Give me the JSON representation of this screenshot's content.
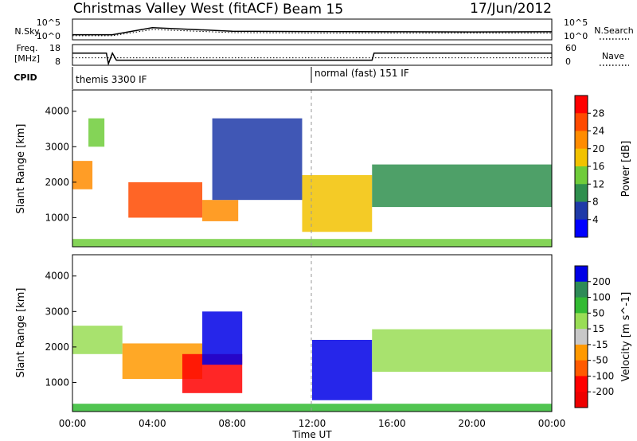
{
  "header": {
    "site": "Christmas Valley West (fitACF)",
    "beam": "Beam 15",
    "date": "17/Jun/2012"
  },
  "nsky_panel": {
    "left_label": "N.Sky",
    "left_ticks": [
      "10^5",
      "10^0"
    ],
    "right_label": "N.Search",
    "right_ticks": [
      "10^5",
      "10^0"
    ]
  },
  "freq_panel": {
    "left_label_1": "Freq.",
    "left_label_2": "[MHz]",
    "left_ticks": [
      "18",
      "8"
    ],
    "right_label": "Nave",
    "right_ticks": [
      "60",
      "0"
    ]
  },
  "cpid": {
    "label": "CPID",
    "modes": [
      {
        "name": "themis 3300 IF",
        "start_hour": 0
      },
      {
        "name": "normal (fast) 151 IF",
        "start_hour": 12
      }
    ]
  },
  "xaxis": {
    "title": "Time UT",
    "ticks": [
      "00:00",
      "04:00",
      "08:00",
      "12:00",
      "16:00",
      "20:00",
      "00:00"
    ]
  },
  "yaxis": {
    "title": "Slant Range [km]",
    "ticks": [
      "4000",
      "3000",
      "2000",
      "1000"
    ]
  },
  "power_scale": {
    "title": "Power [dB]",
    "labels": [
      "28",
      "24",
      "20",
      "16",
      "12",
      "8",
      "4"
    ],
    "colors": [
      "#ff0000",
      "#ff4a00",
      "#ff8c00",
      "#f2c200",
      "#6fcc3a",
      "#2f8f4e",
      "#1f3aa8",
      "#0000ff"
    ]
  },
  "velocity_scale": {
    "title": "Velocity [m s^-1]",
    "labels": [
      "200",
      "100",
      "50",
      "15",
      "-15",
      "-50",
      "-100",
      "-200"
    ],
    "colors": [
      "#0000e6",
      "#2e8b57",
      "#33bb33",
      "#99dd55",
      "#c8c8c8",
      "#ff9900",
      "#ff5a00",
      "#ff0000",
      "#ee0000"
    ]
  },
  "chart_data": [
    {
      "type": "line",
      "title": "N.Sky / N.Search",
      "x": [
        0,
        2,
        4,
        8,
        12,
        16,
        20,
        24
      ],
      "series": [
        {
          "name": "N.Sky",
          "values": [
            10,
            10,
            1000,
            100,
            80,
            70,
            60,
            70
          ]
        },
        {
          "name": "N.Search",
          "values": [
            5,
            5,
            300,
            40,
            30,
            30,
            30,
            30
          ]
        }
      ]
    },
    {
      "type": "line",
      "title": "Freq. / Nave",
      "x": [
        0,
        1.7,
        1.8,
        2.0,
        2.2,
        15,
        15.1,
        24
      ],
      "series": [
        {
          "name": "Freq.",
          "values": [
            14,
            14,
            8,
            14,
            10,
            10,
            14,
            14
          ]
        },
        {
          "name": "Nave",
          "values": [
            20,
            20,
            20,
            20,
            20,
            20,
            20,
            20
          ]
        }
      ]
    },
    {
      "type": "heatmap",
      "title": "Power [dB]",
      "xlabel": "Time UT",
      "ylabel": "Slant Range [km]",
      "xlim": [
        0,
        24
      ],
      "ylim": [
        180,
        4600
      ],
      "regions": [
        {
          "t0": 0.0,
          "t1": 1.0,
          "r0": 1800,
          "r1": 2600,
          "level": 20
        },
        {
          "t0": 0.8,
          "t1": 1.6,
          "r0": 3000,
          "r1": 3800,
          "level": 12
        },
        {
          "t0": 2.8,
          "t1": 6.5,
          "r0": 1000,
          "r1": 2000,
          "level": 24
        },
        {
          "t0": 6.5,
          "t1": 8.3,
          "r0": 900,
          "r1": 1500,
          "level": 20
        },
        {
          "t0": 7.0,
          "t1": 11.5,
          "r0": 1500,
          "r1": 3800,
          "level": 4
        },
        {
          "t0": 11.5,
          "t1": 15.0,
          "r0": 600,
          "r1": 2200,
          "level": 16
        },
        {
          "t0": 15.0,
          "t1": 24.0,
          "r0": 1300,
          "r1": 2500,
          "level": 8
        },
        {
          "t0": 0.0,
          "t1": 24.0,
          "r0": 180,
          "r1": 400,
          "level": 12
        }
      ]
    },
    {
      "type": "heatmap",
      "title": "Velocity [m s^-1]",
      "xlabel": "Time UT",
      "ylabel": "Slant Range [km]",
      "xlim": [
        0,
        24
      ],
      "ylim": [
        180,
        4600
      ],
      "regions": [
        {
          "t0": 0.0,
          "t1": 2.5,
          "r0": 1800,
          "r1": 2600,
          "level": 0
        },
        {
          "t0": 2.5,
          "t1": 6.5,
          "r0": 1100,
          "r1": 2100,
          "level": -50
        },
        {
          "t0": 5.5,
          "t1": 8.5,
          "r0": 700,
          "r1": 1800,
          "level": -200
        },
        {
          "t0": 6.5,
          "t1": 8.5,
          "r0": 1500,
          "r1": 3000,
          "level": 200
        },
        {
          "t0": 12.0,
          "t1": 15.0,
          "r0": 500,
          "r1": 2200,
          "level": 200
        },
        {
          "t0": 15.0,
          "t1": 24.0,
          "r0": 1300,
          "r1": 2500,
          "level": 0
        },
        {
          "t0": 0.0,
          "t1": 24.0,
          "r0": 180,
          "r1": 400,
          "level": 50
        }
      ]
    }
  ]
}
